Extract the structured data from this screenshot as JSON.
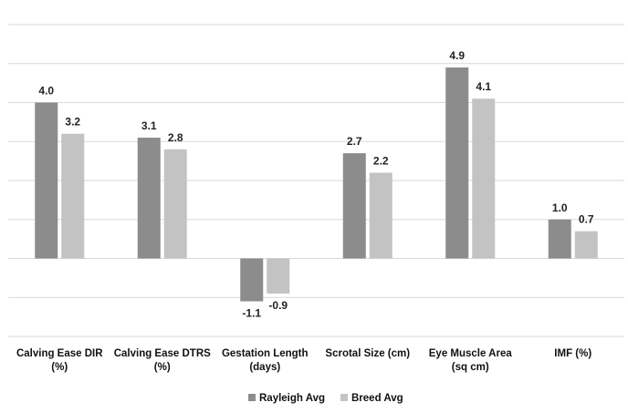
{
  "chart_data": {
    "type": "bar",
    "title": "",
    "xlabel": "",
    "ylabel": "",
    "categories": [
      [
        "Calving Ease DIR",
        "(%)"
      ],
      [
        "Calving Ease DTRS",
        "(%)"
      ],
      [
        "Gestation Length",
        "(days)"
      ],
      [
        "Scrotal Size (cm)"
      ],
      [
        "Eye Muscle Area",
        "(sq cm)"
      ],
      [
        "IMF (%)"
      ]
    ],
    "series": [
      {
        "name": "Rayleigh Avg",
        "color": "#8c8c8c",
        "values": [
          4.0,
          3.1,
          -1.1,
          2.7,
          4.9,
          1.0
        ]
      },
      {
        "name": "Breed Avg",
        "color": "#c3c3c3",
        "values": [
          3.2,
          2.8,
          -0.9,
          2.2,
          4.1,
          0.7
        ]
      }
    ],
    "ylim": [
      -2,
      6
    ],
    "gridlines": [
      -2,
      -1,
      0,
      1,
      2,
      3,
      4,
      5,
      6
    ],
    "grid": true,
    "y_tick_labels_shown": false,
    "legend_position": "bottom"
  }
}
